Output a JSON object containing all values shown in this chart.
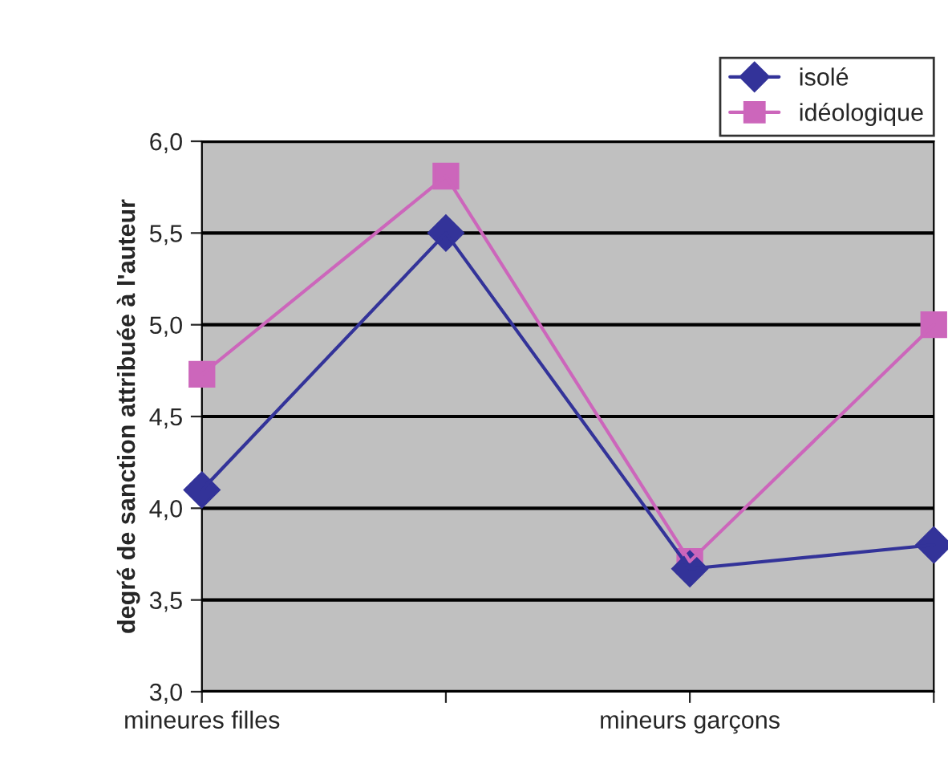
{
  "chart_data": {
    "type": "line",
    "ylabel": "degré de sanction attribuée à l'auteur",
    "categories": [
      "mineures filles",
      null,
      "mineurs garçons",
      null
    ],
    "series": [
      {
        "name": "isolé",
        "color": "#333399",
        "marker": "diamond",
        "values": [
          4.1,
          5.5,
          3.67,
          3.8
        ]
      },
      {
        "name": "idéologique",
        "color": "#cc66bb",
        "marker": "square",
        "values": [
          4.73,
          5.81,
          3.71,
          5.0
        ]
      }
    ],
    "ylim": [
      3.0,
      6.0
    ],
    "yticks": [
      {
        "value": 3.0,
        "label": "3,0"
      },
      {
        "value": 3.5,
        "label": "3,5"
      },
      {
        "value": 4.0,
        "label": "4,0"
      },
      {
        "value": 4.5,
        "label": "4,5"
      },
      {
        "value": 5.0,
        "label": "5,0"
      },
      {
        "value": 5.5,
        "label": "5,5"
      },
      {
        "value": 6.0,
        "label": "6,0"
      }
    ],
    "grid": "y",
    "legend": "top right",
    "line_style": "solid"
  }
}
